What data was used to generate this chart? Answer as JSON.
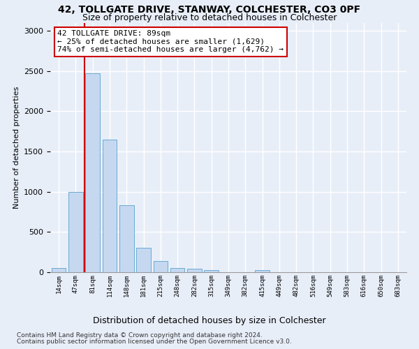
{
  "title_line1": "42, TOLLGATE DRIVE, STANWAY, COLCHESTER, CO3 0PF",
  "title_line2": "Size of property relative to detached houses in Colchester",
  "xlabel": "Distribution of detached houses by size in Colchester",
  "ylabel": "Number of detached properties",
  "bar_labels": [
    "14sqm",
    "47sqm",
    "81sqm",
    "114sqm",
    "148sqm",
    "181sqm",
    "215sqm",
    "248sqm",
    "282sqm",
    "315sqm",
    "349sqm",
    "382sqm",
    "415sqm",
    "449sqm",
    "482sqm",
    "516sqm",
    "549sqm",
    "583sqm",
    "616sqm",
    "650sqm",
    "683sqm"
  ],
  "bar_heights": [
    50,
    1000,
    2470,
    1650,
    830,
    300,
    140,
    50,
    40,
    30,
    0,
    0,
    25,
    0,
    0,
    0,
    0,
    0,
    0,
    0,
    0
  ],
  "bar_color": "#c5d8f0",
  "bar_edge_color": "#6aaad4",
  "property_bin_index": 2,
  "red_line_color": "#cc0000",
  "annotation_text": "42 TOLLGATE DRIVE: 89sqm\n← 25% of detached houses are smaller (1,629)\n74% of semi-detached houses are larger (4,762) →",
  "annotation_box_facecolor": "#ffffff",
  "annotation_box_edgecolor": "#cc0000",
  "ylim": [
    0,
    3100
  ],
  "yticks": [
    0,
    500,
    1000,
    1500,
    2000,
    2500,
    3000
  ],
  "bg_color": "#e8eef8",
  "grid_color": "#ffffff",
  "footnote1": "Contains HM Land Registry data © Crown copyright and database right 2024.",
  "footnote2": "Contains public sector information licensed under the Open Government Licence v3.0."
}
